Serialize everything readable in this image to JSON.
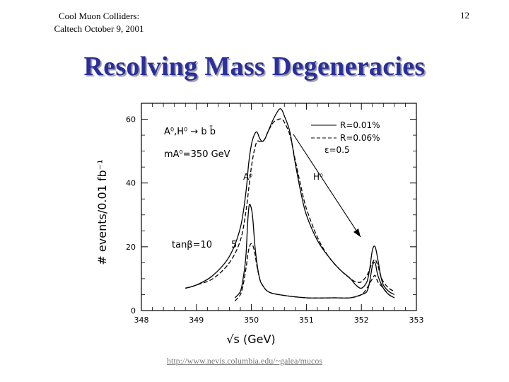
{
  "header": {
    "line1": "Cool Muon Colliders:",
    "line2": "Caltech October 9, 2001",
    "page_number": "12"
  },
  "title": "Resolving Mass Degeneracies",
  "footer": {
    "link": "http://www.nevis.columbia.edu/~galea/mucos"
  },
  "chart_data": {
    "type": "line",
    "title": "",
    "xlabel": "√s  (GeV)",
    "ylabel": "# events/0.01 fb⁻¹",
    "xlim": [
      348,
      353
    ],
    "ylim": [
      0,
      65
    ],
    "x_ticks": [
      "348",
      "349",
      "350",
      "351",
      "352",
      "353"
    ],
    "y_ticks": [
      {
        "value": 0,
        "label": "0"
      },
      {
        "value": 20,
        "label": "20"
      },
      {
        "value": 40,
        "label": "40"
      },
      {
        "value": 60,
        "label": "60"
      }
    ],
    "legend": [
      {
        "label": "R=0.01%",
        "style": "solid"
      },
      {
        "label": "R=0.06%",
        "style": "dashed"
      },
      {
        "label": "ε=0.5",
        "style": "none"
      }
    ],
    "annotations": {
      "process": "A⁰,H⁰ → b b̄",
      "mass": "mA⁰=350 GeV",
      "peak_a": "A⁰",
      "peak_h": "H⁰",
      "tanbeta": "tanβ=10",
      "tanbeta_alt": "5"
    },
    "series": [
      {
        "name": "tanβ=10, R=0.01%",
        "style": "solid",
        "x": [
          348.8,
          349.0,
          349.3,
          349.6,
          349.8,
          349.9,
          349.95,
          350.0,
          350.05,
          350.1,
          350.15,
          350.2,
          350.25,
          350.3,
          350.4,
          350.5,
          350.55,
          350.6,
          350.7,
          350.8,
          350.9,
          351.0,
          351.2,
          351.4,
          351.6,
          351.8,
          351.9,
          352.0,
          352.1,
          352.15,
          352.2,
          352.25,
          352.3,
          352.35,
          352.4,
          352.5,
          352.6
        ],
        "y": [
          7,
          8,
          11,
          17,
          26,
          37,
          46,
          52,
          55,
          56,
          54,
          53,
          54,
          56,
          60,
          63,
          63,
          61,
          56,
          46,
          37,
          30,
          22,
          17,
          13,
          10,
          8,
          7,
          9,
          13,
          19,
          20,
          16,
          11,
          8,
          6,
          5
        ]
      },
      {
        "name": "tanβ=10, R=0.06%",
        "style": "dashed",
        "x": [
          348.8,
          349.0,
          349.3,
          349.6,
          349.8,
          349.9,
          349.95,
          350.0,
          350.05,
          350.1,
          350.15,
          350.2,
          350.25,
          350.3,
          350.4,
          350.5,
          350.55,
          350.6,
          350.7,
          350.8,
          350.9,
          351.0,
          351.2,
          351.4,
          351.6,
          351.8,
          351.9,
          352.0,
          352.1,
          352.15,
          352.2,
          352.25,
          352.3,
          352.35,
          352.4,
          352.5,
          352.6
        ],
        "y": [
          7,
          8,
          10,
          15,
          22,
          31,
          38,
          45,
          50,
          53,
          53,
          53,
          54,
          56,
          59,
          60,
          60,
          59,
          55,
          47,
          39,
          32,
          23,
          17,
          13,
          10,
          9,
          9,
          11,
          13,
          15,
          16,
          14,
          11,
          9,
          7,
          6
        ]
      },
      {
        "name": "tanβ=5, R=0.01%",
        "style": "solid",
        "x": [
          349.7,
          349.8,
          349.85,
          349.9,
          349.93,
          349.96,
          350.0,
          350.03,
          350.06,
          350.1,
          350.15,
          350.2,
          350.3,
          350.5,
          351.0,
          351.5,
          351.8,
          352.0,
          352.1,
          352.15,
          352.2,
          352.25,
          352.3,
          352.4,
          352.5,
          352.6
        ],
        "y": [
          4,
          6,
          10,
          17,
          27,
          33,
          32,
          28,
          21,
          15,
          10,
          8,
          6,
          5,
          4,
          4,
          4,
          5,
          6,
          9,
          14,
          15,
          11,
          7,
          5,
          4
        ]
      },
      {
        "name": "tanβ=5, R=0.06%",
        "style": "dashed",
        "x": [
          349.7,
          349.8,
          349.85,
          349.9,
          349.95,
          350.0,
          350.05,
          350.1,
          350.15,
          350.2,
          350.3,
          350.5,
          351.0,
          351.5,
          351.8,
          352.0,
          352.1,
          352.2,
          352.25,
          352.3,
          352.4,
          352.5,
          352.6
        ],
        "y": [
          3,
          5,
          8,
          13,
          19,
          21,
          19,
          14,
          10,
          8,
          6,
          5,
          4,
          4,
          4,
          5,
          7,
          10,
          11,
          9,
          7,
          5,
          4
        ]
      }
    ]
  }
}
